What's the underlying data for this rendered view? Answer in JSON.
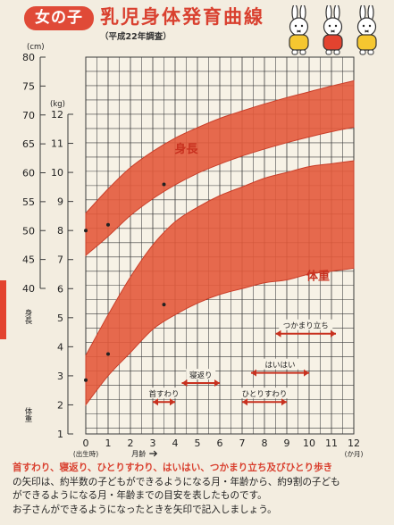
{
  "header": {
    "badge": "女の子",
    "title": "乳児身体発育曲線",
    "subtitle": "（平成22年調査）"
  },
  "colors": {
    "band": "#e35a3c",
    "band_edge": "#c93f2a",
    "grid": "#3a3a3a",
    "accent": "#d9402f",
    "background": "#f3ede0"
  },
  "chart_data": {
    "type": "area",
    "x_label": "月齢",
    "x_unit": "(か月)",
    "x_ticks": [
      "0",
      "1",
      "2",
      "3",
      "4",
      "5",
      "6",
      "7",
      "8",
      "9",
      "10",
      "11",
      "12"
    ],
    "x_zero_note": "(出生時)",
    "xlim": [
      0,
      12
    ],
    "height_axis": {
      "label": "身長",
      "unit": "(cm)",
      "ylim": [
        0,
        80
      ],
      "ticks": [
        "80",
        "75",
        "70",
        "65",
        "60",
        "55",
        "50",
        "45",
        "40"
      ]
    },
    "weight_axis": {
      "label": "体重",
      "unit": "(kg)",
      "ylim": [
        1,
        12
      ],
      "ticks": [
        "12",
        "11",
        "10",
        "9",
        "8",
        "7",
        "6",
        "5",
        "4",
        "3",
        "2",
        "1"
      ]
    },
    "series": [
      {
        "name": "身長",
        "axis": "height",
        "x": [
          0,
          1,
          2,
          3,
          4,
          5,
          6,
          7,
          8,
          9,
          10,
          11,
          12
        ],
        "upper": [
          53.0,
          57.2,
          60.9,
          63.7,
          66.0,
          67.8,
          69.4,
          70.7,
          71.9,
          73.0,
          74.0,
          75.0,
          75.9
        ],
        "lower": [
          45.7,
          49.0,
          52.6,
          55.5,
          57.9,
          59.9,
          61.5,
          62.9,
          64.1,
          65.2,
          66.2,
          67.1,
          67.9
        ]
      },
      {
        "name": "体重",
        "axis": "weight",
        "x": [
          0,
          1,
          2,
          3,
          4,
          5,
          6,
          7,
          8,
          9,
          10,
          11,
          12
        ],
        "upper": [
          3.7,
          5.1,
          6.4,
          7.5,
          8.3,
          8.8,
          9.2,
          9.5,
          9.8,
          10.0,
          10.2,
          10.3,
          10.4
        ],
        "lower": [
          2.0,
          3.0,
          3.8,
          4.6,
          5.1,
          5.5,
          5.8,
          6.0,
          6.2,
          6.3,
          6.5,
          6.6,
          6.7
        ]
      }
    ],
    "recorded_points": {
      "height": [
        {
          "x": 0,
          "y": 50.0
        },
        {
          "x": 1,
          "y": 51.0
        },
        {
          "x": 3.5,
          "y": 58.0
        }
      ],
      "weight": [
        {
          "x": 0,
          "y": 2.85
        },
        {
          "x": 1,
          "y": 3.75
        },
        {
          "x": 3.5,
          "y": 5.45
        }
      ]
    },
    "milestones": [
      {
        "label": "首すわり",
        "from": 3,
        "to": 4
      },
      {
        "label": "寝返り",
        "from": 4.3,
        "to": 6
      },
      {
        "label": "ひとりすわり",
        "from": 7,
        "to": 9
      },
      {
        "label": "はいはい",
        "from": 7.4,
        "to": 10
      },
      {
        "label": "つかまり立ち",
        "from": 8.5,
        "to": 11.2
      }
    ]
  },
  "caption": {
    "highlight": "首すわり、寝返り、ひとりすわり、はいはい、つかまり立ち及びひとり歩き",
    "line2": "の矢印は、約半数の子どもができるようになる月・年齢から、約9割の子ども",
    "line3": "ができるようになる月・年齢までの目安を表したものです。",
    "line4": "お子さんができるようになったときを矢印で記入しましょう。"
  }
}
